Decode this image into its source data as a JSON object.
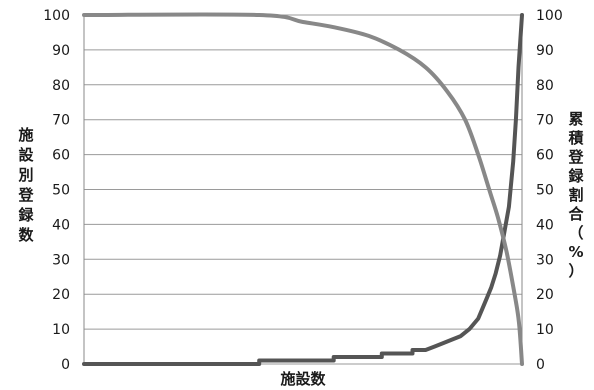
{
  "chart_data": {
    "type": "line",
    "xlabel": "施設数",
    "ylabel_left": "施設別登録数",
    "ylabel_right": "累積登録割合（%）",
    "ylim_left": [
      0,
      100
    ],
    "ylim_right": [
      0,
      100
    ],
    "yticks_left": [
      "0",
      "10",
      "20",
      "30",
      "40",
      "50",
      "60",
      "70",
      "80",
      "90",
      "100"
    ],
    "yticks_right": [
      "0",
      "10",
      "20",
      "30",
      "40",
      "50",
      "60",
      "70",
      "80",
      "90",
      "100"
    ],
    "grid": true,
    "x_count": 100,
    "series": [
      {
        "axis": "left",
        "color": "#555555",
        "style": "step",
        "points": [
          [
            0,
            0
          ],
          [
            40,
            0
          ],
          [
            40,
            1
          ],
          [
            57,
            1
          ],
          [
            57,
            2
          ],
          [
            68,
            2
          ],
          [
            68,
            3
          ],
          [
            75,
            3
          ],
          [
            75,
            4
          ],
          [
            78,
            4
          ],
          [
            80,
            5
          ],
          [
            82,
            6
          ],
          [
            84,
            7
          ],
          [
            86,
            8
          ],
          [
            88,
            10
          ],
          [
            90,
            13
          ],
          [
            91,
            16
          ],
          [
            92,
            19
          ],
          [
            93,
            22
          ],
          [
            94,
            26
          ],
          [
            95,
            31
          ],
          [
            96,
            38
          ],
          [
            97,
            45
          ],
          [
            98,
            58
          ],
          [
            98.6,
            70
          ],
          [
            99.2,
            85
          ],
          [
            100,
            100
          ]
        ]
      },
      {
        "axis": "right",
        "color": "#888888",
        "style": "smooth",
        "points": [
          [
            0,
            100
          ],
          [
            40,
            100
          ],
          [
            50,
            98
          ],
          [
            57,
            96.5
          ],
          [
            65,
            94
          ],
          [
            72,
            90
          ],
          [
            78,
            85
          ],
          [
            83,
            78
          ],
          [
            87,
            70
          ],
          [
            90,
            60
          ],
          [
            92.5,
            50
          ],
          [
            94.5,
            42
          ],
          [
            96.5,
            32
          ],
          [
            98.3,
            20
          ],
          [
            99.3,
            12
          ],
          [
            100,
            0
          ]
        ]
      }
    ]
  }
}
